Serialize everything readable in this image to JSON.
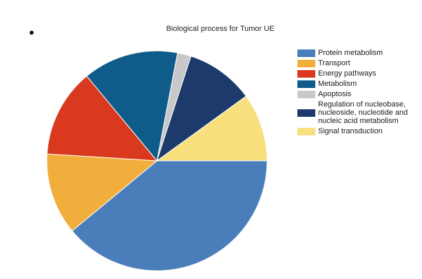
{
  "bullet": "•",
  "chart_data": {
    "type": "pie",
    "title": "Biological process for Tumor UE",
    "legend_position": "right",
    "slices": [
      {
        "label": "Protein metabolism",
        "value": 39,
        "color": "#4A7EBB"
      },
      {
        "label": "Transport",
        "value": 12,
        "color": "#F2AE3C"
      },
      {
        "label": "Energy pathways",
        "value": 13,
        "color": "#D93A1F"
      },
      {
        "label": "Metabolism",
        "value": 14,
        "color": "#0F5C8A"
      },
      {
        "label": "Apoptosis",
        "value": 2,
        "color": "#C8C8C8"
      },
      {
        "label": "Regulation of nucleobase, nucleoside, nucleotide and nucleic acid metabolism",
        "value": 10,
        "color": "#1C3A6B"
      },
      {
        "label": "Signal transduction",
        "value": 10,
        "color": "#F8E07E"
      }
    ],
    "legend_lines": {
      "regulation": [
        "Regulation of nucleobase,",
        "nucleoside, nucleotide and",
        "nucleic acid metabolism"
      ]
    }
  }
}
